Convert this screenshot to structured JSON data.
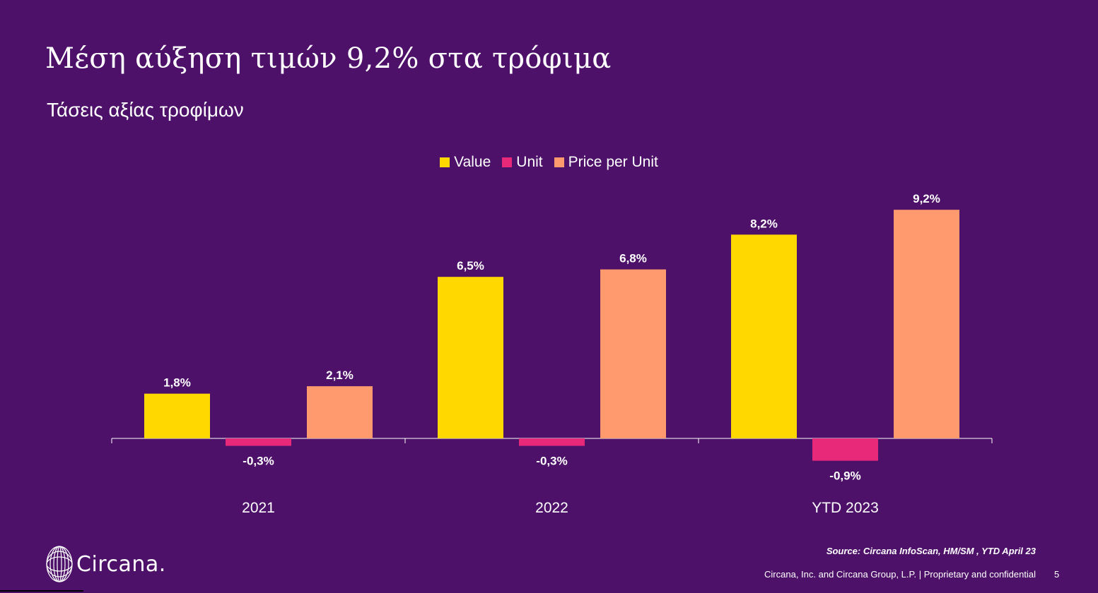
{
  "title": "Μέση αύξηση τιμών 9,2% στα τρόφιμα",
  "subtitle": "Τάσεις αξίας τροφίμων",
  "legend": [
    {
      "label": "Value",
      "color": "#ffd800"
    },
    {
      "label": "Unit",
      "color": "#e8297a"
    },
    {
      "label": "Price per Unit",
      "color": "#ff9a6e"
    }
  ],
  "chart_data": {
    "type": "bar",
    "categories": [
      "2021",
      "2022",
      "YTD 2023"
    ],
    "series": [
      {
        "name": "Value",
        "color": "#ffd800",
        "values": [
          1.8,
          6.5,
          8.2
        ],
        "labels": [
          "1,8%",
          "6,5%",
          "8,2%"
        ]
      },
      {
        "name": "Unit",
        "color": "#e8297a",
        "values": [
          -0.3,
          -0.3,
          -0.9
        ],
        "labels": [
          "-0,3%",
          "-0,3%",
          "-0,9%"
        ]
      },
      {
        "name": "Price per Unit",
        "color": "#ff9a6e",
        "values": [
          2.1,
          6.8,
          9.2
        ],
        "labels": [
          "2,1%",
          "6,8%",
          "9,2%"
        ]
      }
    ],
    "title": "",
    "xlabel": "",
    "ylabel": "",
    "ylim": [
      -0.9,
      9.2
    ],
    "grid": false,
    "legend_position": "top-center"
  },
  "logo": {
    "text": "Circana.",
    "icon": "circana-globe-icon"
  },
  "source": "Source: Circana InfoScan, HM/SM , YTD April 23",
  "footer": "Circana, Inc. and Circana Group, L.P. |  Proprietary and confidential",
  "page_number": "5"
}
